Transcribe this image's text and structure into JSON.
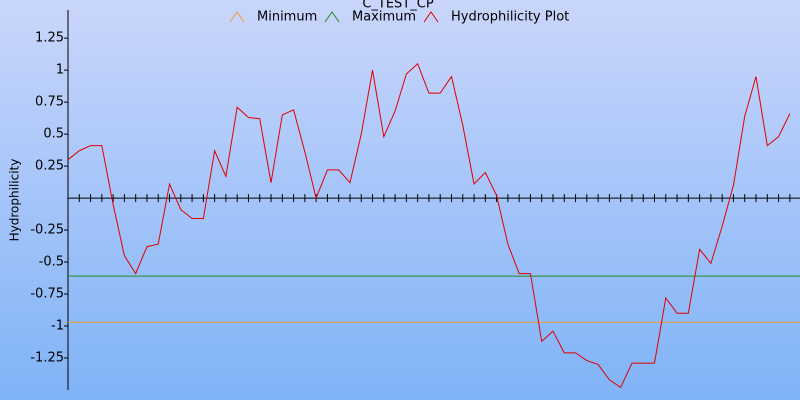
{
  "chart_data": {
    "type": "line",
    "title": "C_TEST_CP",
    "y_label": "Hydrophilicity",
    "x": [
      0,
      1,
      2,
      3,
      4,
      5,
      6,
      7,
      8,
      9,
      10,
      11,
      12,
      13,
      14,
      15,
      16,
      17,
      18,
      19,
      20,
      21,
      22,
      23,
      24,
      25,
      26,
      27,
      28,
      29,
      30,
      31,
      32,
      33,
      34,
      35,
      36,
      37,
      38,
      39,
      40,
      41,
      42,
      43,
      44,
      45,
      46,
      47,
      48,
      49,
      50,
      51,
      52,
      53,
      54,
      55,
      56,
      57,
      58,
      59,
      60,
      61,
      62,
      63,
      64
    ],
    "xlim": [
      0,
      64.9
    ],
    "ylim": [
      -1.5,
      1.47
    ],
    "yticks": [
      -1.25,
      -1,
      -0.75,
      -0.5,
      -0.25,
      0.25,
      0.5,
      0.75,
      1,
      1.25
    ],
    "thresholds": [
      {
        "name": "Minimum",
        "color": "#f0a030",
        "value": -0.97
      },
      {
        "name": "Maximum",
        "color": "#208a20",
        "value": -0.61
      }
    ],
    "series": [
      {
        "name": "Hydrophilicity Plot",
        "color": "#e00000",
        "values": [
          0.3,
          0.37,
          0.41,
          0.41,
          -0.05,
          -0.45,
          -0.59,
          -0.38,
          -0.36,
          0.11,
          -0.09,
          -0.16,
          -0.16,
          0.37,
          0.17,
          0.71,
          0.63,
          0.62,
          0.12,
          0.65,
          0.69,
          0.36,
          0,
          0.22,
          0.22,
          0.12,
          0.5,
          1.0,
          0.48,
          0.68,
          0.97,
          1.05,
          0.82,
          0.82,
          0.95,
          0.57,
          0.11,
          0.2,
          0.02,
          -0.36,
          -0.59,
          -0.59,
          -1.12,
          -1.04,
          -1.21,
          -1.21,
          -1.27,
          -1.3,
          -1.42,
          -1.48,
          -1.29,
          -1.29,
          -1.29,
          -0.78,
          -0.9,
          -0.9,
          -0.4,
          -0.51,
          -0.22,
          0.1,
          0.64,
          0.95,
          0.41,
          0.48,
          0.66
        ]
      }
    ]
  }
}
